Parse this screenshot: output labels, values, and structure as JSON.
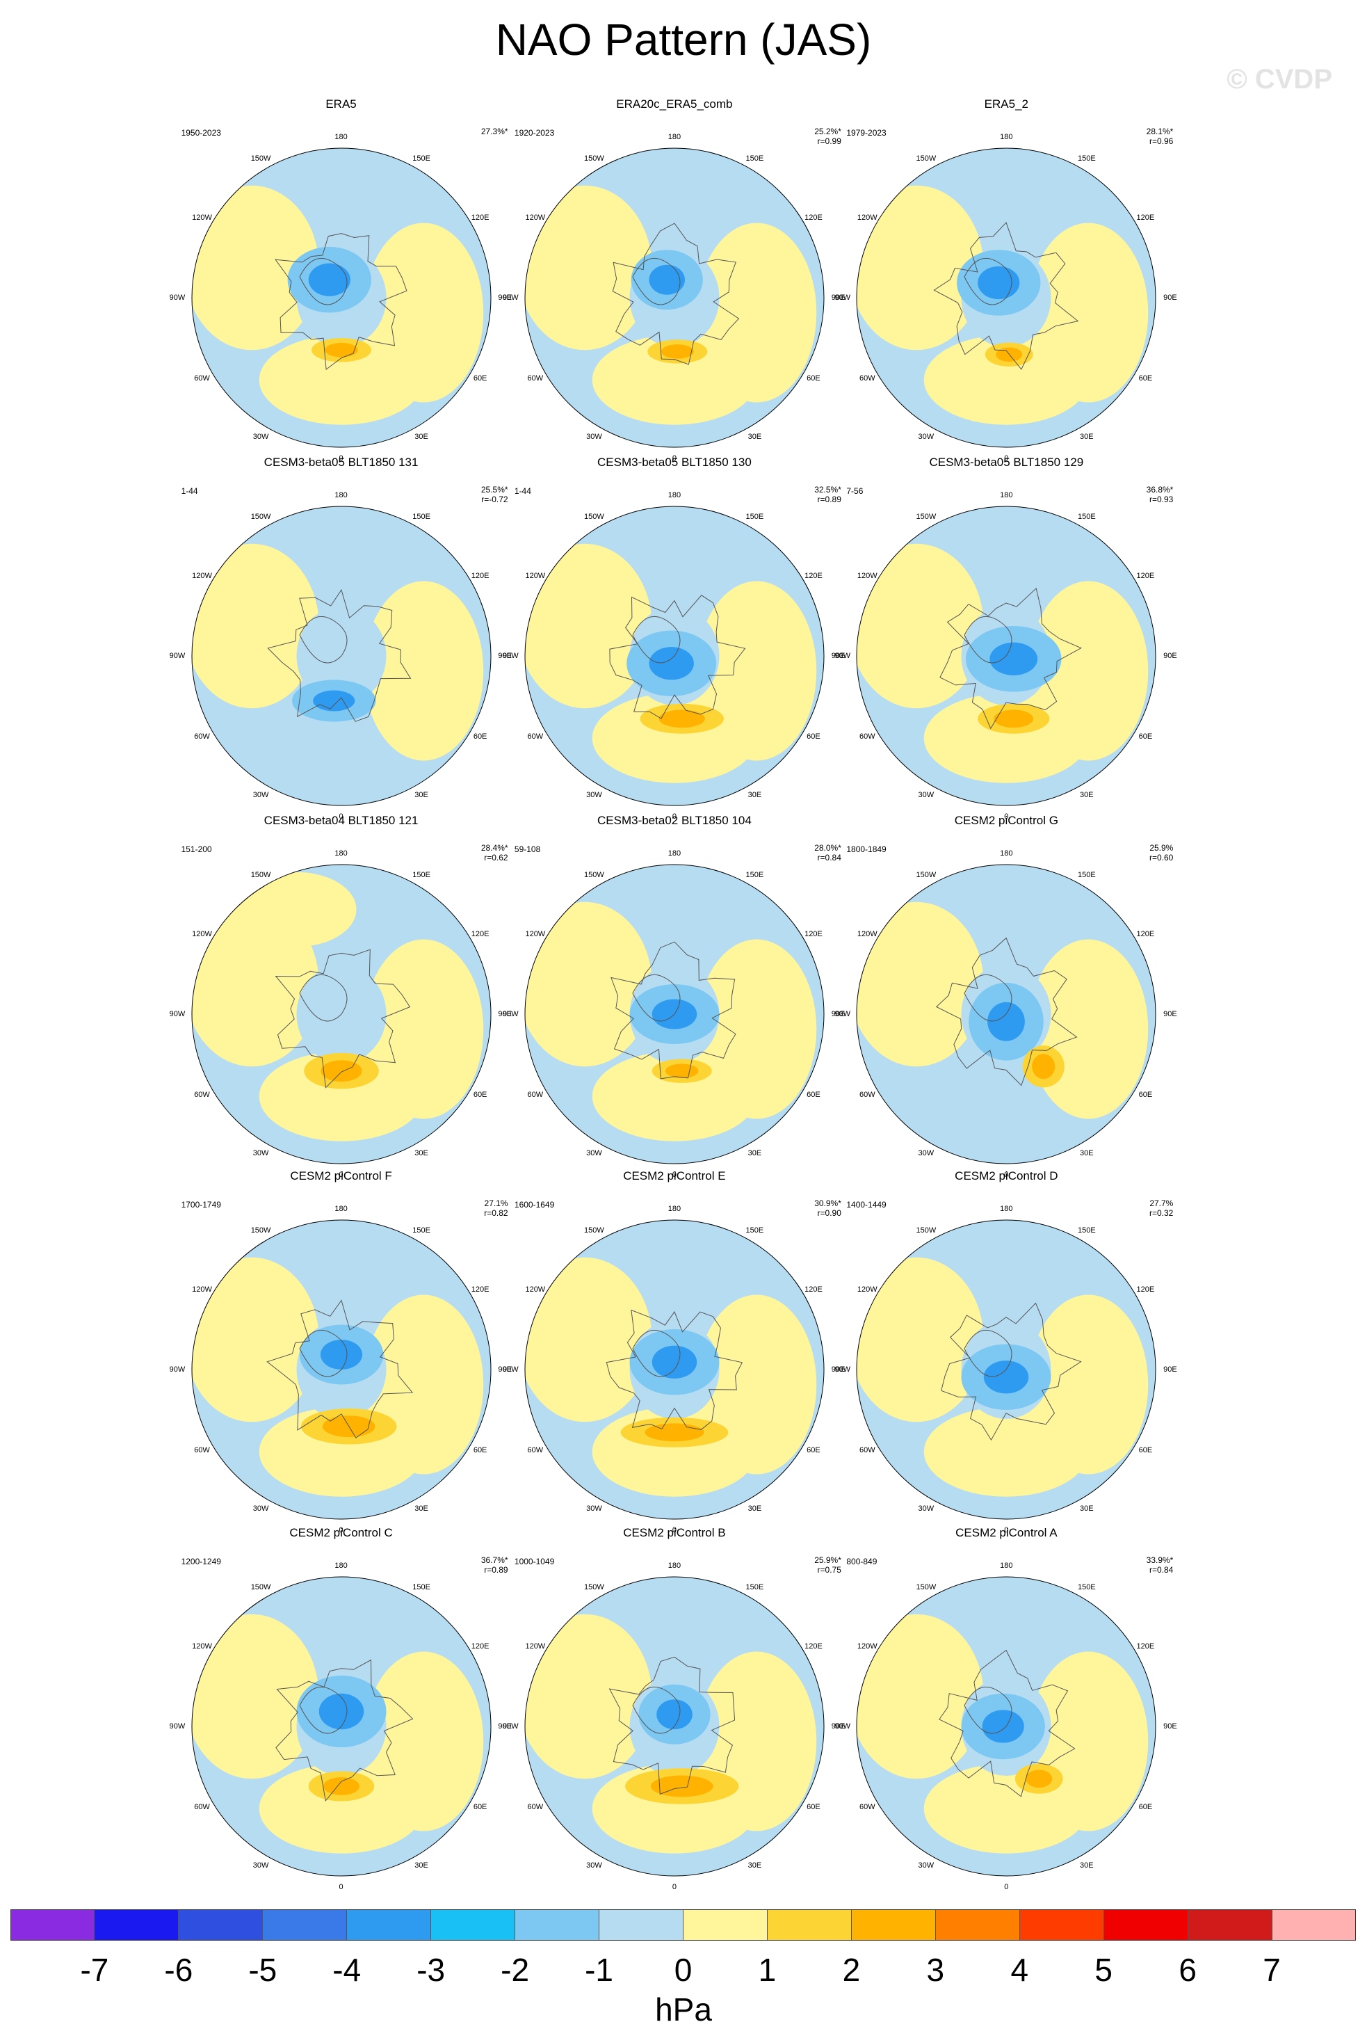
{
  "title": "NAO Pattern (JAS)",
  "watermark": "© CVDP",
  "longitude_labels": [
    "180",
    "150E",
    "120E",
    "90E",
    "60E",
    "30E",
    "0",
    "30W",
    "60W",
    "90W",
    "120W",
    "150W"
  ],
  "panels": [
    {
      "title": "ERA5",
      "period": "1950-2023",
      "variance": "27.3%*",
      "corr": ""
    },
    {
      "title": "ERA20c_ERA5_comb",
      "period": "1920-2023",
      "variance": "25.2%*",
      "corr": "r=0.99"
    },
    {
      "title": "ERA5_2",
      "period": "1979-2023",
      "variance": "28.1%*",
      "corr": "r=0.96"
    },
    {
      "title": "CESM3-beta05 BLT1850 131",
      "period": "1-44",
      "variance": "25.5%*",
      "corr": "r=-0.72"
    },
    {
      "title": "CESM3-beta05 BLT1850 130",
      "period": "1-44",
      "variance": "32.5%*",
      "corr": "r=0.89"
    },
    {
      "title": "CESM3-beta05 BLT1850 129",
      "period": "7-56",
      "variance": "36.8%*",
      "corr": "r=0.93"
    },
    {
      "title": "CESM3-beta04 BLT1850 121",
      "period": "151-200",
      "variance": "28.4%*",
      "corr": "r=0.62"
    },
    {
      "title": "CESM3-beta02 BLT1850 104",
      "period": "59-108",
      "variance": "28.0%*",
      "corr": "r=0.84"
    },
    {
      "title": "CESM2 piControl G",
      "period": "1800-1849",
      "variance": "25.9%",
      "corr": "r=0.60"
    },
    {
      "title": "CESM2 piControl F",
      "period": "1700-1749",
      "variance": "27.1%",
      "corr": "r=0.82"
    },
    {
      "title": "CESM2 piControl E",
      "period": "1600-1649",
      "variance": "30.9%*",
      "corr": "r=0.90"
    },
    {
      "title": "CESM2 piControl D",
      "period": "1400-1449",
      "variance": "27.7%",
      "corr": "r=0.32"
    },
    {
      "title": "CESM2 piControl C",
      "period": "1200-1249",
      "variance": "36.7%*",
      "corr": "r=0.89"
    },
    {
      "title": "CESM2 piControl B",
      "period": "1000-1049",
      "variance": "25.9%*",
      "corr": "r=0.75"
    },
    {
      "title": "CESM2 piControl A",
      "period": "800-849",
      "variance": "33.9%*",
      "corr": "r=0.84"
    }
  ],
  "colorbar": {
    "colors": [
      "#8a2be2",
      "#1a1af0",
      "#2f4fe0",
      "#3a7ae8",
      "#2f9bf0",
      "#19c0f5",
      "#7cc8f2",
      "#b6dcf2",
      "#fff59a",
      "#fcd535",
      "#ffb300",
      "#ff7f00",
      "#ff3c00",
      "#f00000",
      "#d11a1a",
      "#ffb0b0"
    ],
    "tick_labels": [
      "-7",
      "-6",
      "-5",
      "-4",
      "-3",
      "-2",
      "-1",
      "0",
      "1",
      "2",
      "3",
      "4",
      "5",
      "6",
      "7"
    ],
    "unit": "hPa"
  }
}
